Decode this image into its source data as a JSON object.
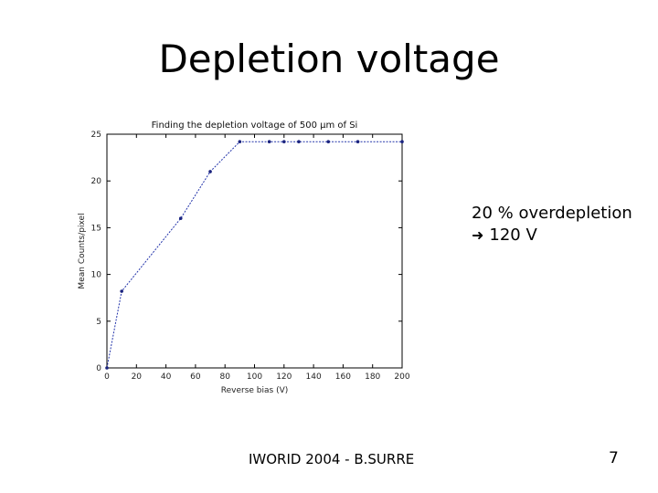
{
  "slide": {
    "title": "Depletion voltage",
    "note_line1": "20 % overdepletion",
    "note_line2": "120 V",
    "footer": "IWORID 2004 - B.SURRE",
    "page_number": "7"
  },
  "chart_data": {
    "type": "line",
    "title": "Finding the depletion voltage of 500 µm of Si",
    "xlabel": "Reverse bias (V)",
    "ylabel": "Mean Counts/pixel",
    "xlim": [
      0,
      200
    ],
    "ylim": [
      0,
      25
    ],
    "xticks": [
      0,
      20,
      40,
      60,
      80,
      100,
      120,
      140,
      160,
      180,
      200
    ],
    "yticks": [
      0,
      5,
      10,
      15,
      20,
      25
    ],
    "grid": false,
    "line_color": "#2233aa",
    "marker_color": "#1a237e",
    "series": [
      {
        "x": [
          0,
          10,
          50,
          70,
          90,
          110,
          120,
          130,
          150,
          170,
          200
        ],
        "y": [
          0,
          8.2,
          16,
          21,
          24.2,
          24.2,
          24.2,
          24.2,
          24.2,
          24.2,
          24.2
        ]
      }
    ]
  }
}
